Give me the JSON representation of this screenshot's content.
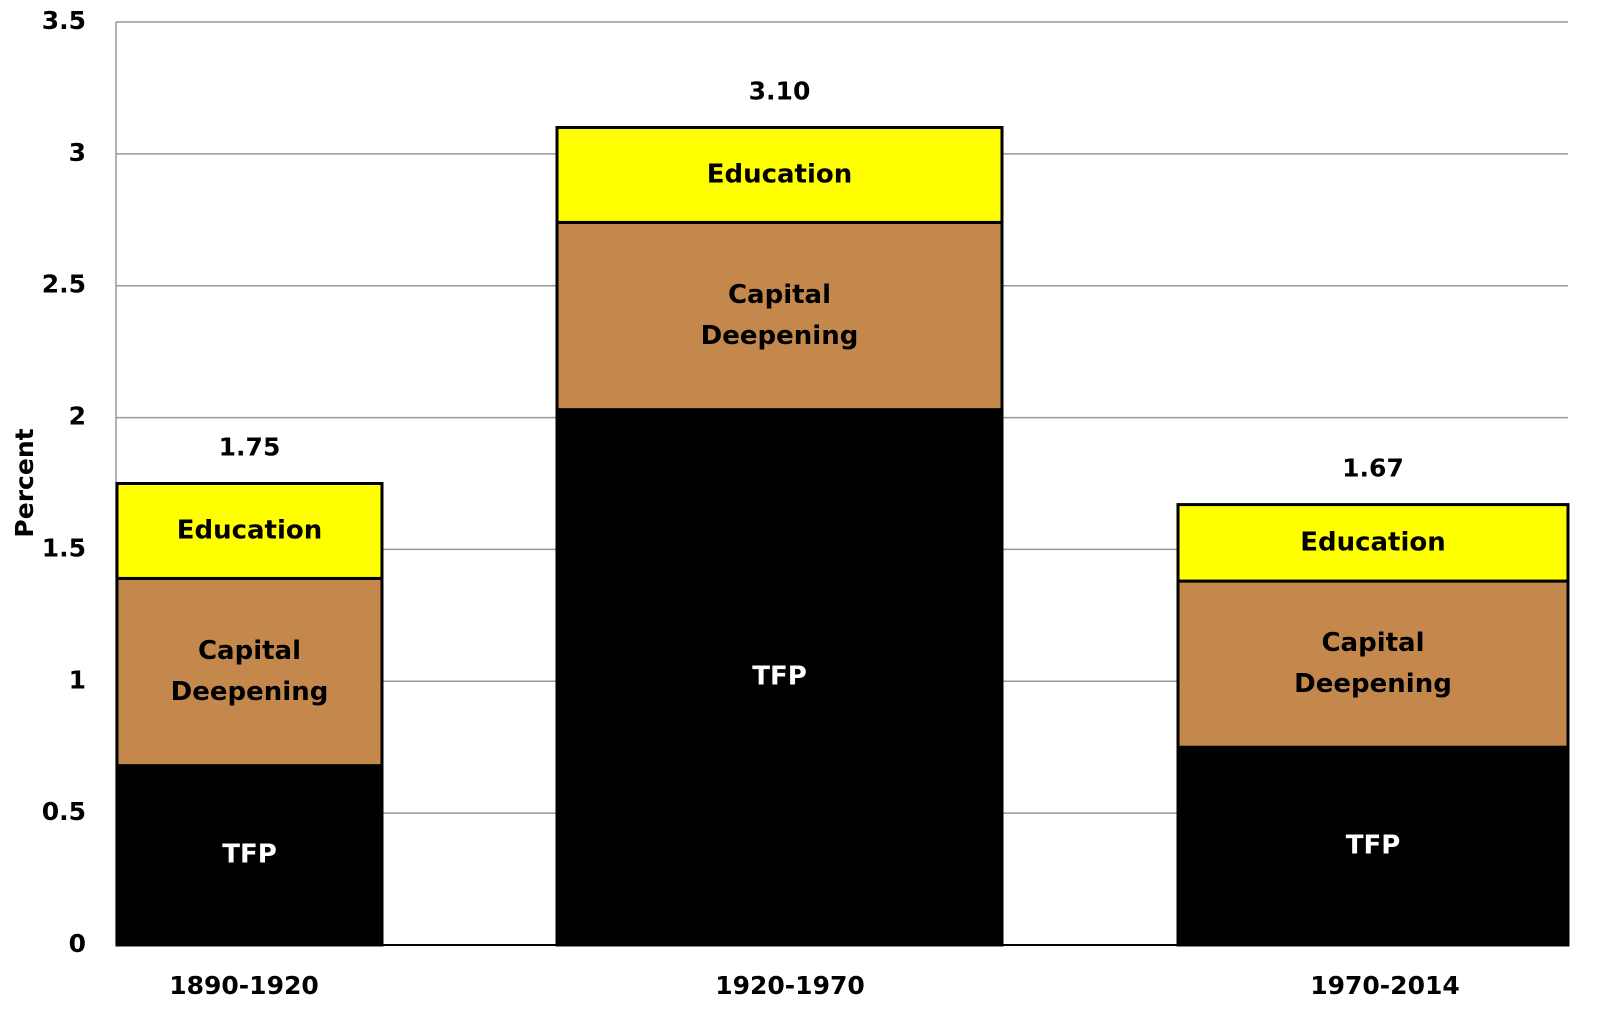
{
  "chart_data": {
    "type": "stacked_bar",
    "y_axis_label": "Percent",
    "categories": [
      "1890-1920",
      "1920-1970",
      "1970-2014"
    ],
    "series": [
      {
        "name": "TFP",
        "color": "#000000",
        "values": [
          0.68,
          2.03,
          0.75
        ]
      },
      {
        "name": "Capital Deepening",
        "color": "#c4884c",
        "values": [
          0.71,
          0.71,
          0.63
        ]
      },
      {
        "name": "Education",
        "color": "#ffff00",
        "values": [
          0.36,
          0.36,
          0.29
        ]
      }
    ],
    "totals": [
      1.75,
      3.1,
      1.67
    ],
    "total_labels": [
      "1.75",
      "3.10",
      "1.67"
    ],
    "ylim": [
      0,
      3.5
    ],
    "yticks": [
      0,
      0.5,
      1,
      1.5,
      2,
      2.5,
      3,
      3.5
    ],
    "grid": true
  }
}
